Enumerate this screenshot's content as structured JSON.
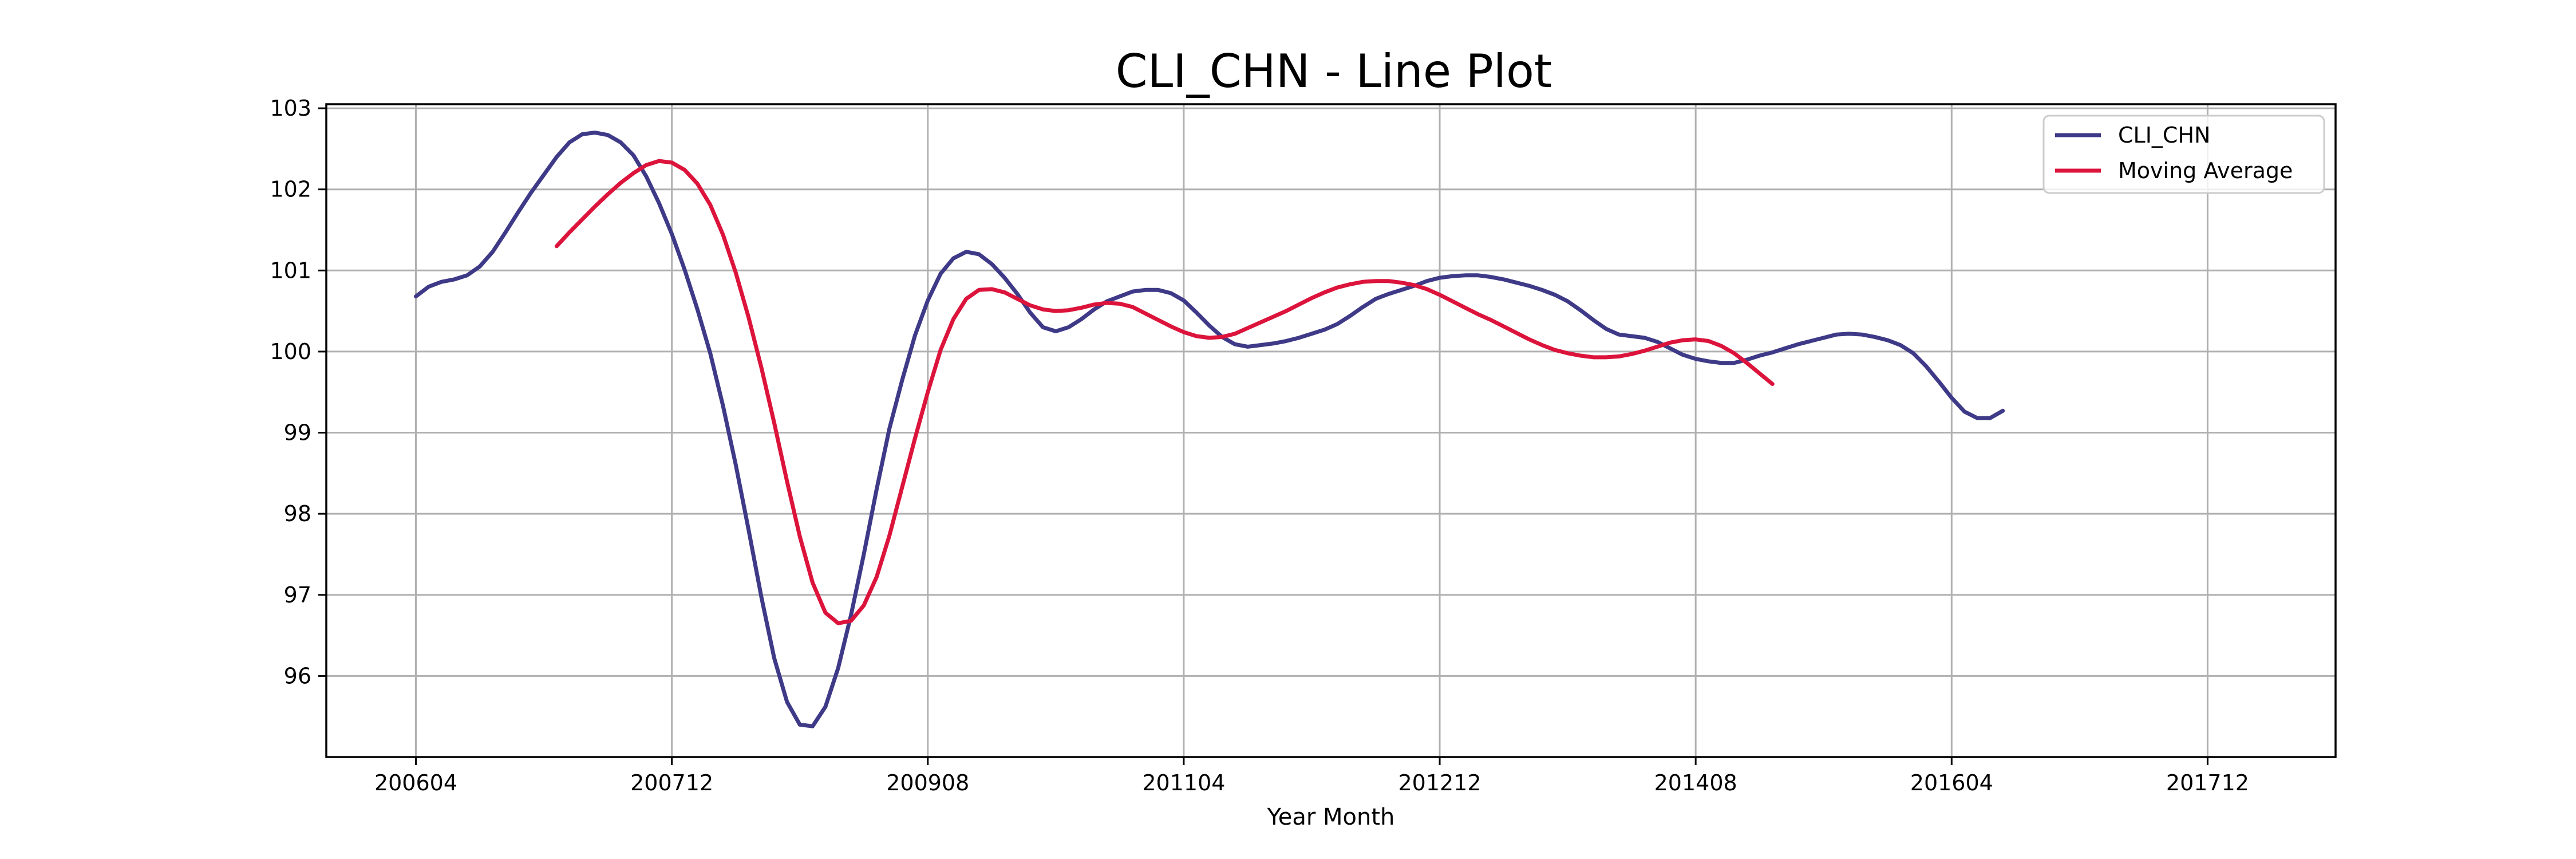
{
  "chart_data": {
    "type": "line",
    "title": "CLI_CHN - Line Plot",
    "xlabel": "Year Month",
    "ylabel": "",
    "x_tick_labels": [
      "200604",
      "200712",
      "200908",
      "201104",
      "201212",
      "201408",
      "201604",
      "201712"
    ],
    "x_tick_index": [
      0,
      20,
      40,
      60,
      80,
      100,
      120,
      140
    ],
    "y_ticks": [
      96,
      97,
      98,
      99,
      100,
      101,
      102,
      103
    ],
    "ylim": [
      95.0,
      103.05
    ],
    "xlim_index": [
      -7,
      150
    ],
    "grid": true,
    "legend_position": "top-right",
    "x_start": "200604",
    "series": [
      {
        "name": "CLI_CHN",
        "color": "#3f3a87",
        "start_index": 0,
        "values": [
          100.68,
          100.8,
          100.86,
          100.89,
          100.94,
          101.05,
          101.23,
          101.47,
          101.72,
          101.96,
          102.18,
          102.4,
          102.58,
          102.68,
          102.7,
          102.67,
          102.58,
          102.42,
          102.16,
          101.83,
          101.45,
          101.01,
          100.52,
          99.98,
          99.33,
          98.6,
          97.8,
          96.97,
          96.22,
          95.68,
          95.4,
          95.38,
          95.62,
          96.1,
          96.75,
          97.5,
          98.3,
          99.05,
          99.65,
          100.2,
          100.63,
          100.96,
          101.15,
          101.23,
          101.2,
          101.08,
          100.91,
          100.71,
          100.48,
          100.3,
          100.25,
          100.3,
          100.4,
          100.52,
          100.62,
          100.68,
          100.74,
          100.76,
          100.76,
          100.72,
          100.63,
          100.48,
          100.32,
          100.18,
          100.09,
          100.06,
          100.08,
          100.1,
          100.13,
          100.17,
          100.22,
          100.27,
          100.34,
          100.44,
          100.55,
          100.65,
          100.71,
          100.76,
          100.81,
          100.87,
          100.91,
          100.93,
          100.94,
          100.94,
          100.92,
          100.89,
          100.85,
          100.81,
          100.76,
          100.7,
          100.62,
          100.51,
          100.39,
          100.28,
          100.21,
          100.19,
          100.17,
          100.12,
          100.04,
          99.96,
          99.91,
          99.88,
          99.86,
          99.86,
          99.9,
          99.95,
          99.99,
          100.04,
          100.09,
          100.13,
          100.17,
          100.21,
          100.22,
          100.21,
          100.18,
          100.14,
          100.08,
          99.98,
          99.82,
          99.63,
          99.43,
          99.26,
          99.18,
          99.18,
          99.27
        ]
      },
      {
        "name": "Moving Average",
        "color": "#dc143c",
        "start_index": 11,
        "values": [
          101.3,
          101.47,
          101.63,
          101.79,
          101.94,
          102.08,
          102.2,
          102.3,
          102.35,
          102.33,
          102.24,
          102.07,
          101.81,
          101.44,
          100.97,
          100.42,
          99.8,
          99.12,
          98.4,
          97.72,
          97.15,
          96.78,
          96.65,
          96.68,
          96.87,
          97.22,
          97.73,
          98.33,
          98.93,
          99.5,
          100.02,
          100.4,
          100.65,
          100.76,
          100.77,
          100.73,
          100.65,
          100.57,
          100.52,
          100.5,
          100.51,
          100.54,
          100.58,
          100.6,
          100.59,
          100.55,
          100.47,
          100.39,
          100.31,
          100.24,
          100.19,
          100.17,
          100.18,
          100.22,
          100.29,
          100.36,
          100.43,
          100.5,
          100.58,
          100.66,
          100.73,
          100.79,
          100.83,
          100.86,
          100.87,
          100.87,
          100.85,
          100.82,
          100.77,
          100.7,
          100.62,
          100.54,
          100.46,
          100.39,
          100.31,
          100.23,
          100.15,
          100.08,
          100.02,
          99.98,
          99.95,
          99.93,
          99.93,
          99.94,
          99.97,
          100.01,
          100.06,
          100.11,
          100.14,
          100.15,
          100.13,
          100.07,
          99.98,
          99.86,
          99.73,
          99.6
        ]
      }
    ]
  }
}
